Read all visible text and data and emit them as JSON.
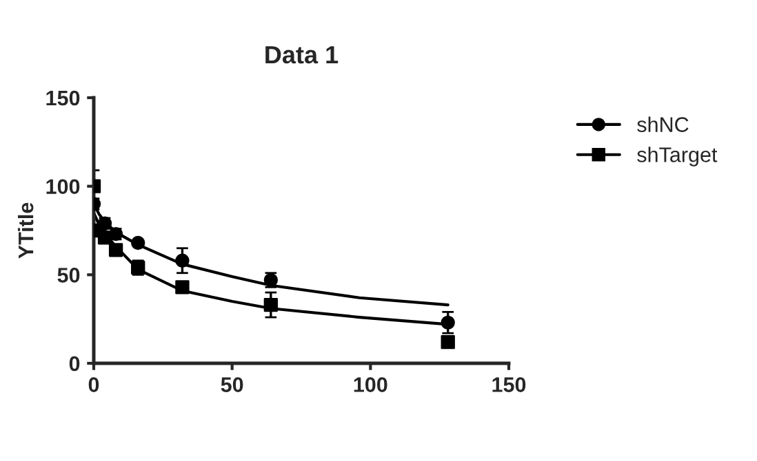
{
  "chart_data": {
    "type": "scatter",
    "title": "Data 1",
    "ylabel": "YTitle",
    "xlim": [
      0,
      150
    ],
    "xticks": [
      0,
      50,
      100,
      150
    ],
    "ylim": [
      0,
      150
    ],
    "yticks": [
      0,
      50,
      100,
      150
    ],
    "grid": false,
    "legend": "top right",
    "series": [
      {
        "name": "shNC",
        "marker": "circle",
        "color": "#000000",
        "x": [
          0,
          4,
          8,
          16,
          32,
          64,
          128
        ],
        "values": [
          90,
          79,
          73,
          68,
          58,
          47,
          23
        ],
        "errors": [
          3,
          3,
          3,
          null,
          7,
          4,
          6
        ]
      },
      {
        "name": "shTarget",
        "marker": "square",
        "color": "#000000",
        "x": [
          0,
          2,
          4,
          8,
          16,
          32,
          64,
          128
        ],
        "values": [
          100,
          75,
          71,
          64,
          54,
          43,
          33,
          12
        ],
        "errors": [
          9,
          3,
          3,
          3,
          4,
          2,
          7,
          3
        ]
      },
      {
        "type": "line",
        "marker": "none",
        "color": "#000000",
        "x": [
          0,
          2,
          4,
          8,
          16,
          32,
          50,
          64,
          96,
          128
        ],
        "values": [
          90,
          84,
          80,
          74,
          67,
          56,
          49,
          44,
          37,
          33
        ]
      },
      {
        "type": "line",
        "marker": "none",
        "color": "#000000",
        "x": [
          0,
          2,
          4,
          8,
          16,
          32,
          50,
          64,
          96,
          128
        ],
        "values": [
          85,
          78,
          73,
          66,
          53,
          41,
          35,
          31,
          26,
          22
        ]
      }
    ]
  }
}
